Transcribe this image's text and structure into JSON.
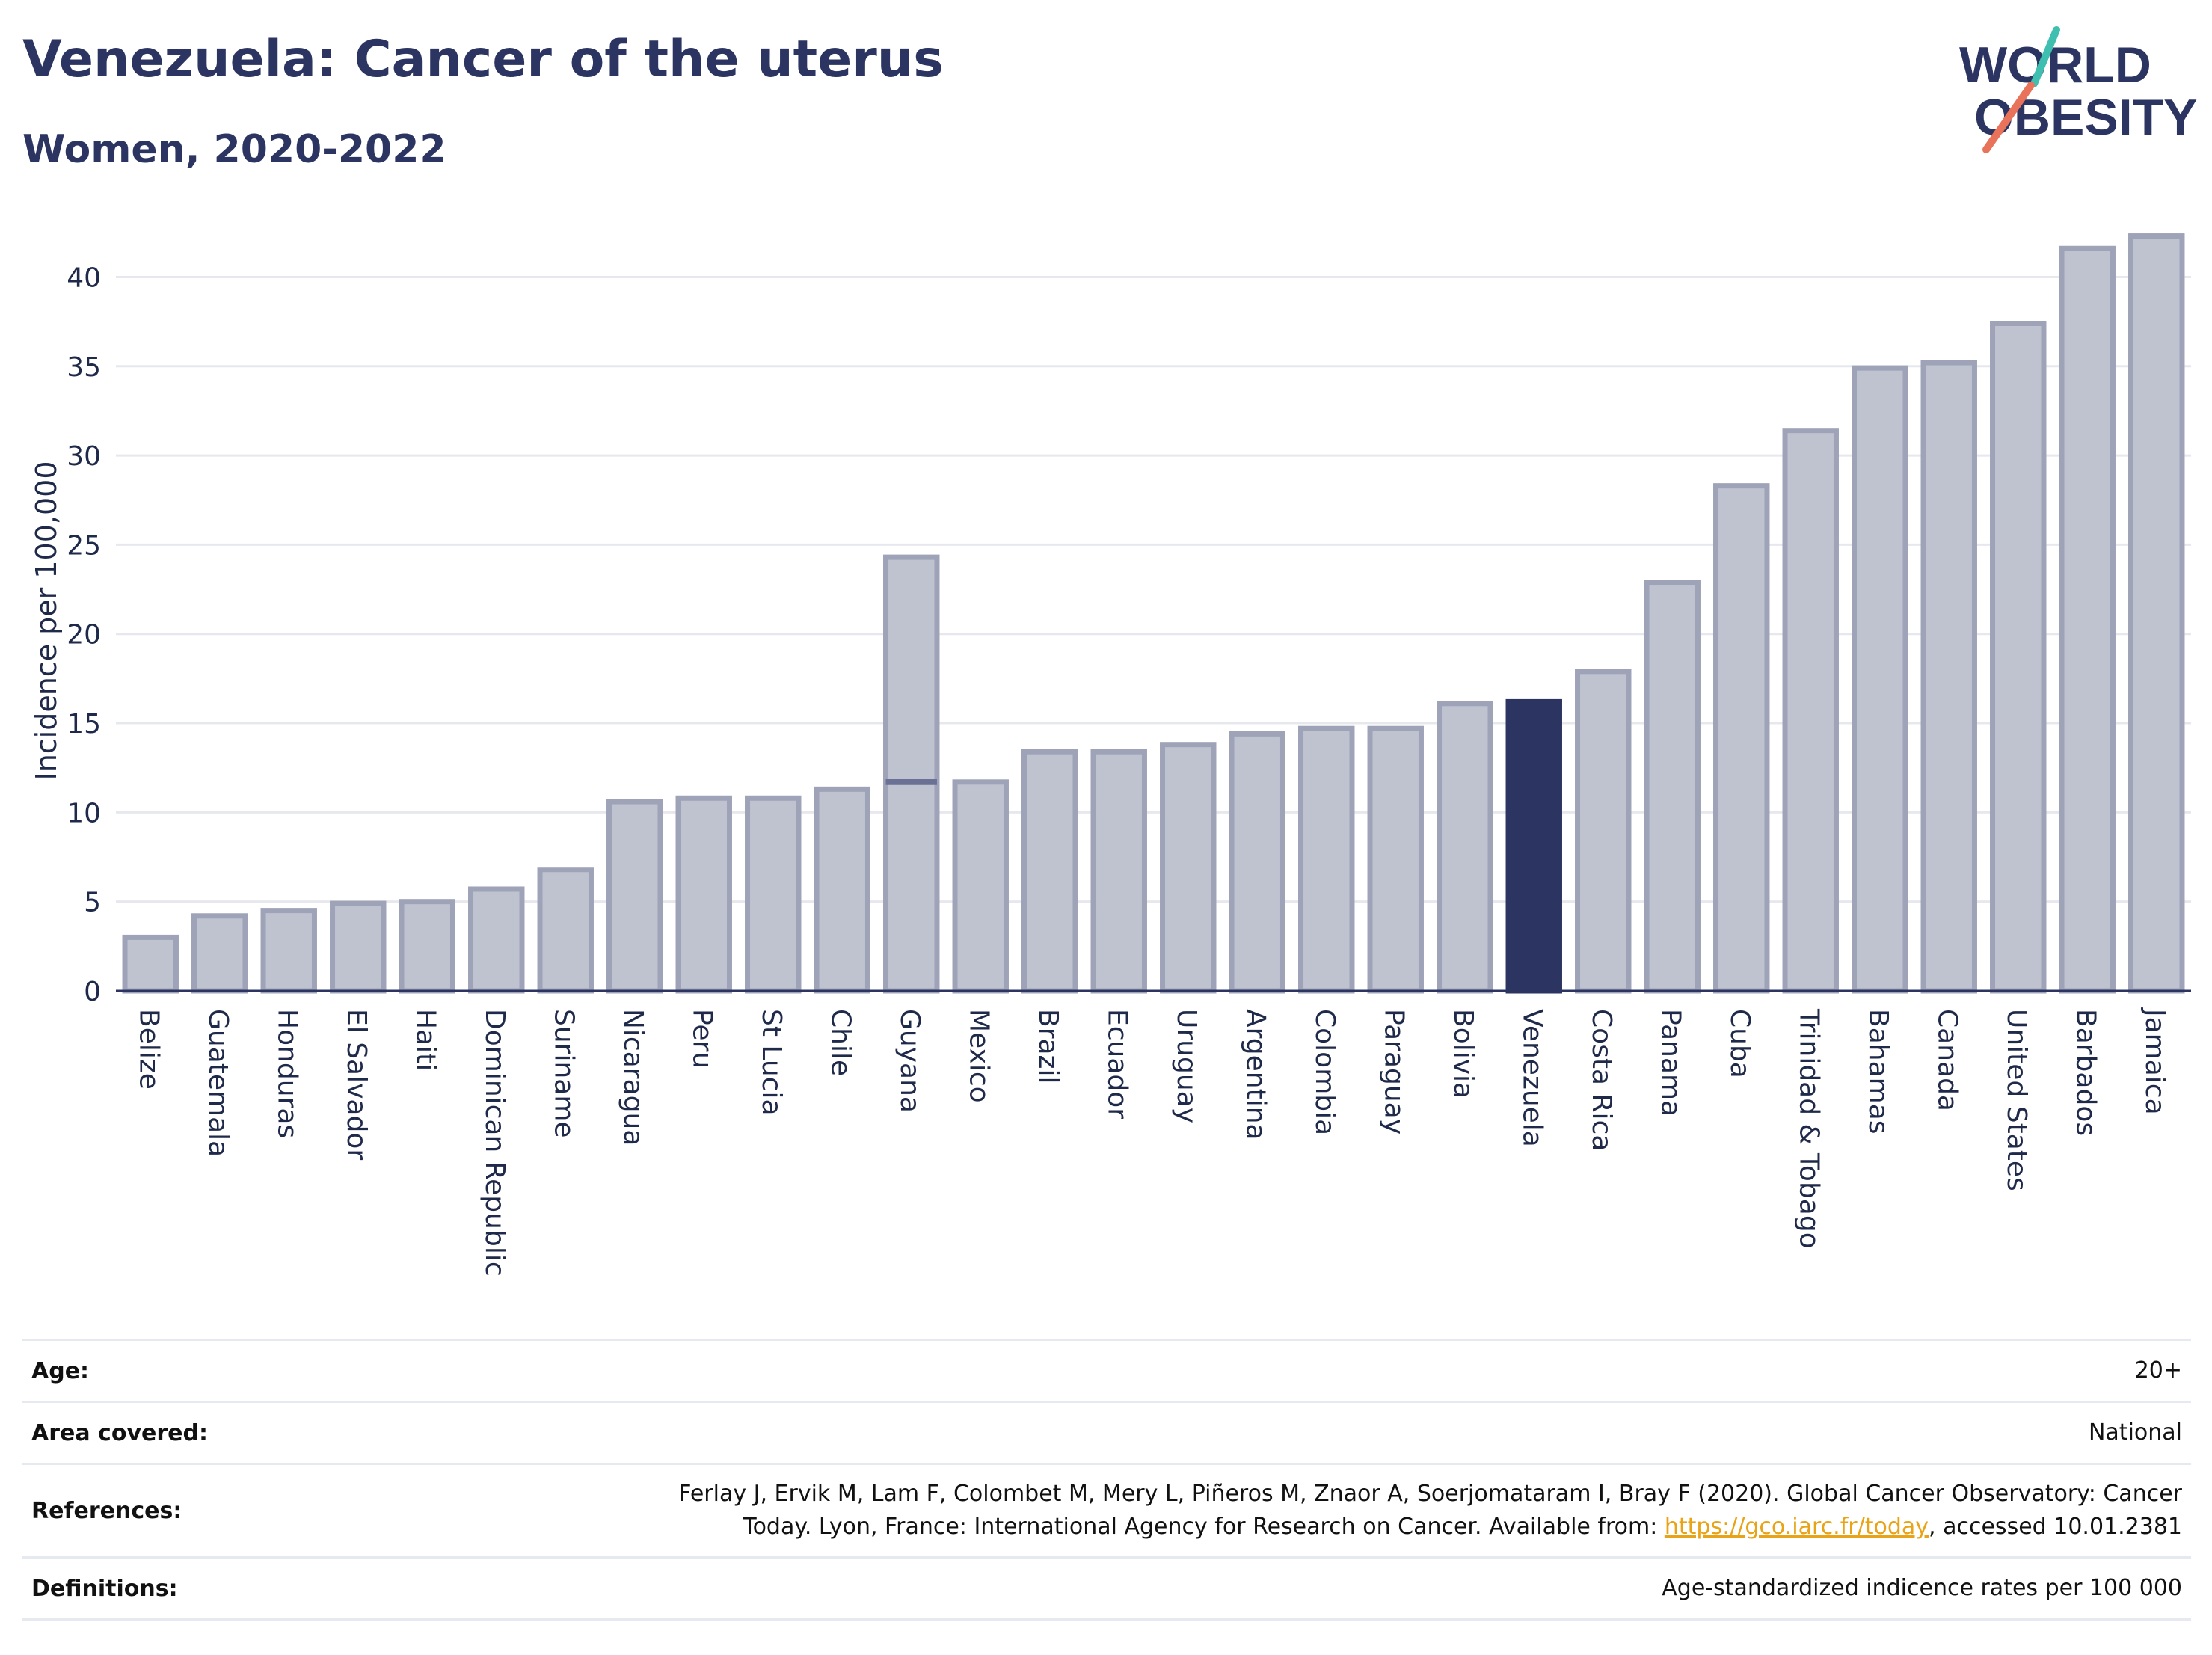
{
  "header": {
    "title": "Venezuela: Cancer of the uterus",
    "subtitle": "Women, 2020-2022"
  },
  "logo": {
    "line1": "WORLD",
    "line2": "OBESITY",
    "accent_teal": "#3fbfb0",
    "accent_coral": "#e8735a"
  },
  "colors": {
    "bar_fill": "#bfc3d0",
    "bar_stroke": "#9ea3b8",
    "highlight": "#2c3561",
    "grid": "#e6e8ee",
    "text": "#1f2a4a"
  },
  "chart_data": {
    "type": "bar",
    "categories": [
      "Belize",
      "Guatemala",
      "Honduras",
      "El Salvador",
      "Haiti",
      "Dominican Republic",
      "Suriname",
      "Nicaragua",
      "Peru",
      "St Lucia",
      "Chile",
      "Guyana",
      "Mexico",
      "Brazil",
      "Ecuador",
      "Uruguay",
      "Argentina",
      "Colombia",
      "Paraguay",
      "Bolivia",
      "Venezuela",
      "Costa Rica",
      "Panama",
      "Cuba",
      "Trinidad & Tobago",
      "Bahamas",
      "Canada",
      "United States",
      "Barbados",
      "Jamaica"
    ],
    "values": [
      3.0,
      4.2,
      4.5,
      4.9,
      5.0,
      5.7,
      6.8,
      10.6,
      10.8,
      10.8,
      11.3,
      24.3,
      11.7,
      13.4,
      13.4,
      13.8,
      14.4,
      14.7,
      14.7,
      16.1,
      16.2,
      17.9,
      22.9,
      28.3,
      31.4,
      34.9,
      35.2,
      37.4,
      41.6,
      42.3
    ],
    "overlay_marks": [
      {
        "category": "Guyana",
        "value": 11.7
      }
    ],
    "highlight": "Venezuela",
    "ylabel": "Incidence per 100,000",
    "xlabel": "",
    "ylim": [
      0,
      44
    ],
    "yticks": [
      0,
      5,
      10,
      15,
      20,
      25,
      30,
      35,
      40
    ],
    "grid": true,
    "legend": "none"
  },
  "info": {
    "age_label": "Age:",
    "age_value": "20+",
    "area_label": "Area covered:",
    "area_value": "National",
    "refs_label": "References:",
    "refs_line1": "Ferlay J, Ervik M, Lam F, Colombet M, Mery L, Piñeros M, Znaor A, Soerjomataram I, Bray F (2020). Global Cancer Observatory: Cancer",
    "refs_line2_pre": "Today. Lyon, France: International Agency for Research on Cancer. Available from: ",
    "refs_link": "https://gco.iarc.fr/today",
    "refs_line2_post": ", accessed 10.01.2381",
    "defs_label": "Definitions:",
    "defs_value": "Age-standardized indicence rates per 100 000"
  }
}
